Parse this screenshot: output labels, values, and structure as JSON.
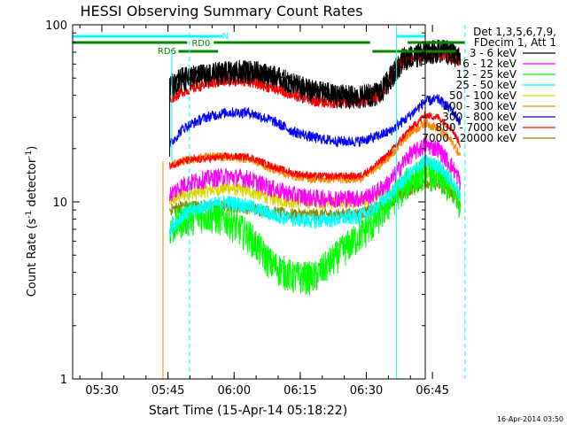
{
  "chart_data": {
    "type": "line",
    "title": "HESSI Observing Summary Count Rates",
    "xlabel": "Start Time (15-Apr-14 05:18:22)",
    "ylabel_main": "Count Rate (s",
    "ylabel_sup": "-1",
    "ylabel_mid": " detector",
    "ylabel_sup2": "-1",
    "ylabel_end": ")",
    "x_ticks": [
      "05:30",
      "05:45",
      "06:00",
      "06:15",
      "06:30",
      "06:45"
    ],
    "y_ticks": [
      "1",
      "10",
      "100"
    ],
    "xlim_minutes": [
      5.0,
      85.0
    ],
    "ylim": [
      1,
      100
    ],
    "y_scale": "log",
    "legend_header": [
      "Det 1,3,5,6,7,9,",
      "FDecim 1, Att 1"
    ],
    "legend_location": "outside-right",
    "series": [
      {
        "name": "3 - 6 keV",
        "color": "#000000",
        "x": [
          27,
          30,
          35,
          40,
          45,
          50,
          55,
          60,
          65,
          70,
          75,
          80,
          85,
          88,
          91,
          93
        ],
        "values": [
          45,
          50,
          52,
          54,
          55,
          52,
          46,
          42,
          40,
          39,
          42,
          65,
          70,
          72,
          70,
          64
        ]
      },
      {
        "name": "6 - 12 keV",
        "color": "#ff00ff",
        "x": [
          27,
          30,
          35,
          40,
          45,
          50,
          55,
          60,
          65,
          70,
          73,
          77,
          81,
          85,
          88,
          91,
          93
        ],
        "values": [
          11,
          12.5,
          13.5,
          14,
          13.5,
          12,
          11,
          10.5,
          10.5,
          10.5,
          11,
          13,
          18,
          21,
          20,
          16,
          13
        ]
      },
      {
        "name": "12 - 25 keV",
        "color": "#00ff00",
        "x": [
          27,
          30,
          35,
          40,
          45,
          50,
          55,
          60,
          65,
          70,
          73,
          77,
          81,
          85,
          88,
          91,
          93
        ],
        "values": [
          7,
          8,
          8.5,
          8,
          6.5,
          4.5,
          3.8,
          3.8,
          5,
          6.5,
          7.5,
          10,
          13,
          15,
          14,
          12,
          10
        ]
      },
      {
        "name": "25 - 50 keV",
        "color": "#00ffff",
        "x": [
          27,
          30,
          35,
          40,
          45,
          50,
          55,
          60,
          65,
          70,
          73,
          77,
          81,
          85,
          88,
          91,
          93
        ],
        "values": [
          7,
          8.5,
          9.5,
          10,
          9.5,
          8.5,
          8,
          7.8,
          8,
          8.3,
          9,
          11,
          14,
          17,
          16,
          13,
          11
        ]
      },
      {
        "name": "50 - 100 keV",
        "color": "#d8d800",
        "x": [
          27,
          30,
          35,
          40,
          45,
          50,
          55,
          60,
          65,
          70,
          73,
          77,
          81,
          85,
          88,
          91,
          93
        ],
        "values": [
          10,
          11,
          11.5,
          12,
          11.5,
          10.5,
          10,
          10,
          10,
          10,
          10.5,
          11.5,
          13.5,
          15,
          14,
          12,
          10
        ]
      },
      {
        "name": "100 - 300 keV",
        "color": "#ff8800",
        "x": [
          27,
          30,
          35,
          40,
          45,
          50,
          55,
          60,
          65,
          70,
          73,
          77,
          81,
          85,
          88,
          91,
          93
        ],
        "values": [
          16,
          17,
          18,
          18,
          17.5,
          15.5,
          14,
          13.5,
          13.5,
          13.5,
          15,
          18,
          24,
          28,
          26,
          22,
          18
        ]
      },
      {
        "name": "300 - 800 keV",
        "color": "#0000ff",
        "x": [
          27,
          30,
          35,
          40,
          45,
          50,
          55,
          60,
          65,
          70,
          73,
          77,
          81,
          85,
          88,
          91,
          93
        ],
        "values": [
          21,
          26,
          30,
          32,
          32,
          29,
          25,
          23,
          22,
          22,
          23,
          25,
          30,
          37,
          38,
          33,
          28
        ]
      },
      {
        "name": "800 - 7000 keV",
        "color": "#ff0000",
        "x": [
          27,
          30,
          35,
          40,
          45,
          50,
          55,
          60,
          65,
          70,
          73,
          77,
          81,
          85,
          88,
          91,
          93
        ],
        "values": [
          16,
          17,
          17.5,
          18,
          18,
          16,
          14.5,
          14,
          14,
          14,
          15.5,
          19,
          25,
          31,
          30,
          26,
          21
        ]
      },
      {
        "name": "7000 - 20000 keV",
        "color": "#888800",
        "x": [
          27,
          30,
          35,
          40,
          45,
          50,
          55,
          60,
          65,
          70,
          73,
          77,
          81,
          85,
          88,
          91,
          93
        ],
        "values": [
          9,
          9.5,
          9.5,
          9.5,
          9.2,
          8.8,
          8.5,
          8.5,
          8.5,
          8.6,
          9,
          10,
          11.5,
          13,
          12.5,
          11,
          9.5
        ]
      }
    ],
    "red_band": {
      "x": [
        27,
        30,
        35,
        40,
        45,
        50,
        55,
        60,
        65,
        70,
        75,
        79,
        83,
        88,
        91,
        93
      ],
      "values": [
        38,
        42,
        46,
        48,
        48,
        44,
        40,
        37,
        36,
        37,
        40,
        60,
        66,
        68,
        66,
        62
      ]
    },
    "annotations": {
      "n_label": "N",
      "rd0_label": "RD0",
      "rd6_label": "RD6"
    },
    "footer_date": "16-Apr-2014 03:50"
  }
}
